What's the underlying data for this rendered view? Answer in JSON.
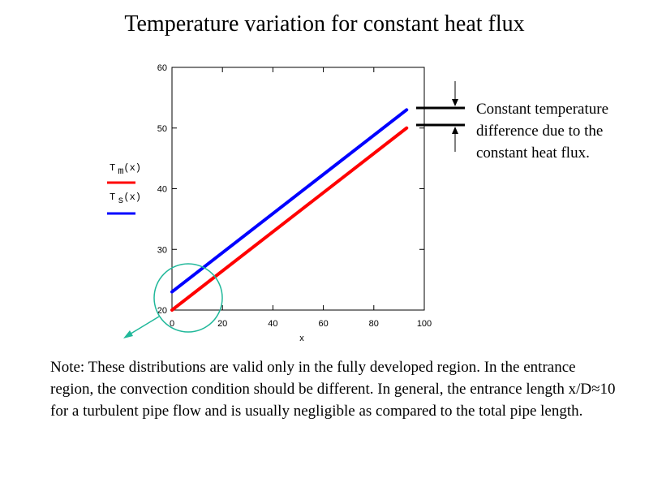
{
  "title": "Temperature variation for constant heat flux",
  "chart_data": {
    "type": "line",
    "xlabel": "x",
    "ylabel": "",
    "xlim": [
      0,
      100
    ],
    "ylim": [
      20,
      60
    ],
    "xticks": [
      0,
      20,
      40,
      60,
      80,
      100
    ],
    "yticks": [
      20,
      30,
      40,
      50,
      60
    ],
    "series": [
      {
        "name": "T m(x)",
        "color": "#ff0000",
        "x": [
          0,
          93
        ],
        "y": [
          20,
          50
        ]
      },
      {
        "name": "T s(x)",
        "color": "#0000ff",
        "x": [
          0,
          93
        ],
        "y": [
          23,
          53
        ]
      }
    ],
    "legend": [
      {
        "label_main": "T",
        "label_sub": "m",
        "label_arg": "(x)",
        "color": "#ff0000"
      },
      {
        "label_main": "T",
        "label_sub": "s",
        "label_arg": "(x)",
        "color": "#0000ff"
      }
    ],
    "grid": false,
    "legend_position": "left"
  },
  "annotation": "Constant temperature difference due to the constant heat flux.",
  "note": "Note: These distributions are valid only in the fully developed region.  In the entrance region, the convection condition should be different.  In general, the entrance length x/D≈10 for a turbulent pipe flow and is usually negligible as compared to the total pipe length.",
  "colors": {
    "highlight_circle": "#20b89a"
  }
}
